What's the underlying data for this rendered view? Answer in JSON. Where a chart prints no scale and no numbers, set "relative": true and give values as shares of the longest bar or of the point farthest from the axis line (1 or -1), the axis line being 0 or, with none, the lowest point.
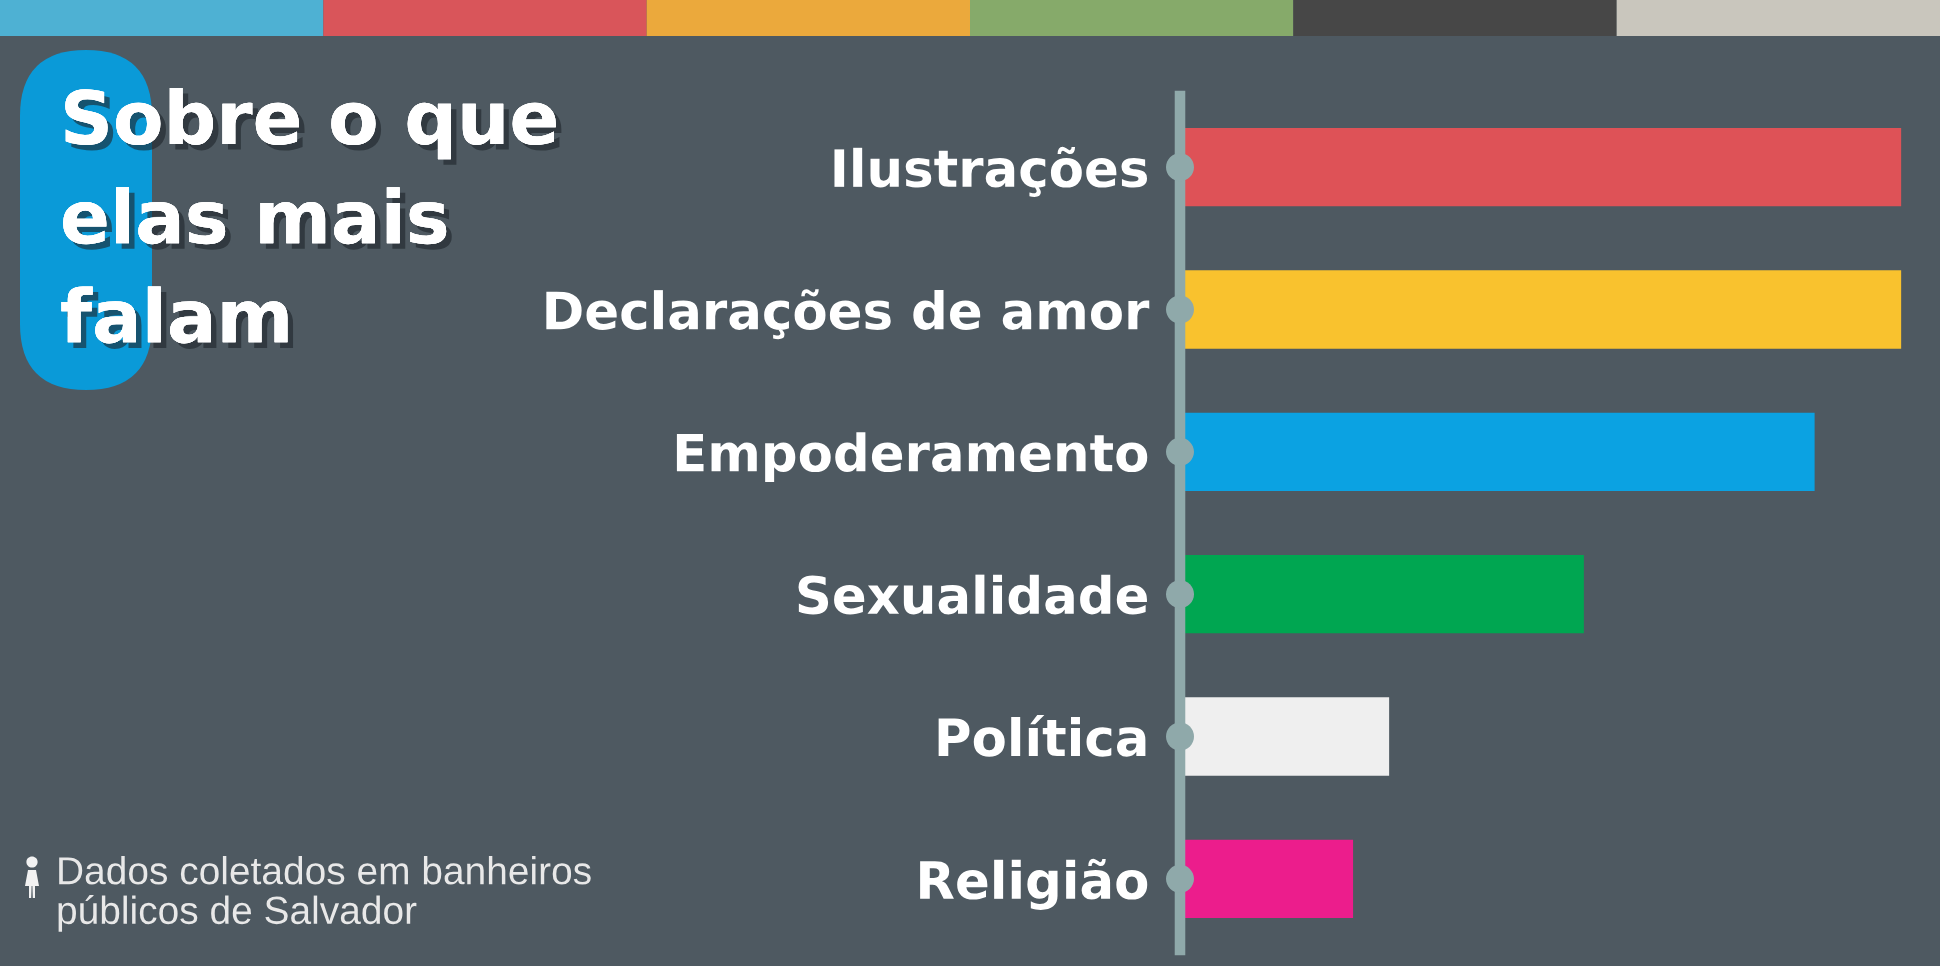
{
  "chart_data": {
    "type": "bar",
    "orientation": "horizontal",
    "relative": true,
    "title": "Sobre o que elas mais falam",
    "categories": [
      "Ilustrações",
      "Declarações de amor",
      "Empoderamento",
      "Sexualidade",
      "Política",
      "Religião"
    ],
    "values": [
      1,
      1,
      0.88,
      0.56,
      0.29,
      0.24
    ],
    "colors": [
      "#de5257",
      "#f9c22e",
      "#0ba2e2",
      "#00a651",
      "#efefef",
      "#ec1d8c"
    ],
    "annotations": [
      "Dados coletados em banheiros públicos de Salvador"
    ]
  }
}
